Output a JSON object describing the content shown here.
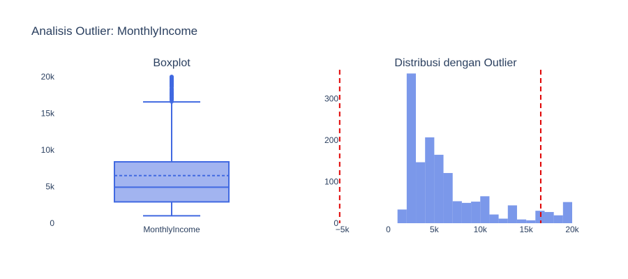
{
  "figure": {
    "title": "Analisis Outlier: MonthlyIncome"
  },
  "colors": {
    "box_stroke": "#4169e1",
    "box_fill": "#a2b4f0",
    "hist_bar": "#7b98ea",
    "threshold_line": "#e00000",
    "text": "#2a3f5f",
    "background": "#ffffff"
  },
  "chart_data": [
    {
      "type": "box",
      "title": "Boxplot",
      "category": "MonthlyIncome",
      "ylim": [
        0,
        20000
      ],
      "yticks": [
        0,
        5000,
        10000,
        15000,
        20000
      ],
      "ytick_labels": [
        "0",
        "5k",
        "10k",
        "15k",
        "20k"
      ],
      "stats": {
        "min": 1009,
        "q1": 2911,
        "median": 4919,
        "mean": 6503,
        "q3": 8379,
        "upper_fence": 16555,
        "max": 19999
      },
      "outliers": [
        16595,
        16799,
        16856,
        16959,
        17007,
        17046,
        17068,
        17099,
        17123,
        17159,
        17169,
        17174,
        17328,
        17399,
        17426,
        17444,
        17465,
        17567,
        17584,
        17603,
        17639,
        17650,
        17665,
        17779,
        17856,
        17861,
        17875,
        17924,
        18041,
        18172,
        18200,
        18213,
        18265,
        18300,
        18303,
        18430,
        18606,
        18665,
        18711,
        18722,
        18740,
        18789,
        18824,
        18844,
        18880,
        18947,
        19033,
        19045,
        19068,
        19081,
        19094,
        19141,
        19144,
        19161,
        19187,
        19189,
        19190,
        19197,
        19232,
        19237,
        19246,
        19272,
        19328,
        19331,
        19392,
        19406,
        19419,
        19431,
        19436,
        19502,
        19513,
        19545,
        19566,
        19586,
        19613,
        19626,
        19627,
        19636,
        19658,
        19665,
        19701,
        19717,
        19740,
        19833,
        19845,
        19847,
        19859,
        19926,
        19943,
        19973,
        19999
      ]
    },
    {
      "type": "histogram",
      "title": "Distribusi dengan Outlier",
      "xlim": [
        -5200,
        20000
      ],
      "ylim": [
        0,
        370
      ],
      "xticks": [
        -5000,
        0,
        5000,
        10000,
        15000,
        20000
      ],
      "xtick_labels": [
        "−5k",
        "0",
        "5k",
        "10k",
        "15k",
        "20k"
      ],
      "yticks": [
        0,
        100,
        200,
        300
      ],
      "ytick_labels": [
        "0",
        "100",
        "200",
        "300"
      ],
      "bin_width": 1000,
      "bins": [
        {
          "x0": 1000,
          "count": 33
        },
        {
          "x0": 2000,
          "count": 361
        },
        {
          "x0": 3000,
          "count": 147
        },
        {
          "x0": 4000,
          "count": 207
        },
        {
          "x0": 5000,
          "count": 165
        },
        {
          "x0": 6000,
          "count": 121
        },
        {
          "x0": 7000,
          "count": 53
        },
        {
          "x0": 8000,
          "count": 49
        },
        {
          "x0": 9000,
          "count": 52
        },
        {
          "x0": 10000,
          "count": 65
        },
        {
          "x0": 11000,
          "count": 21
        },
        {
          "x0": 12000,
          "count": 11
        },
        {
          "x0": 13000,
          "count": 43
        },
        {
          "x0": 14000,
          "count": 9
        },
        {
          "x0": 15000,
          "count": 7
        },
        {
          "x0": 16000,
          "count": 30
        },
        {
          "x0": 17000,
          "count": 27
        },
        {
          "x0": 18000,
          "count": 19
        },
        {
          "x0": 19000,
          "count": 51
        }
      ],
      "threshold_lines": [
        {
          "name": "lower_bound",
          "x": -5291
        },
        {
          "name": "upper_bound",
          "x": 16581
        }
      ]
    }
  ]
}
